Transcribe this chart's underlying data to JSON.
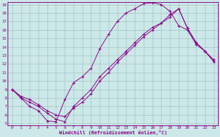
{
  "xlabel": "Windchill (Refroidissement éolien,°C)",
  "bg_color": "#cce8e8",
  "line_color": "#880088",
  "grid_color": "#99bbbb",
  "xlim": [
    0,
    23
  ],
  "ylim": [
    5,
    19
  ],
  "xticks": [
    0,
    1,
    2,
    3,
    4,
    5,
    6,
    7,
    8,
    9,
    10,
    11,
    12,
    13,
    14,
    15,
    16,
    17,
    18,
    19,
    20,
    21,
    22,
    23
  ],
  "yticks": [
    5,
    6,
    7,
    8,
    9,
    10,
    11,
    12,
    13,
    14,
    15,
    16,
    17,
    18,
    19
  ],
  "line1_x": [
    0,
    1,
    2,
    3,
    4,
    5,
    6,
    7,
    8,
    9,
    10,
    11,
    12,
    13,
    14,
    15,
    16,
    17,
    18,
    19,
    20,
    21,
    22,
    23
  ],
  "line1_y": [
    9.0,
    8.0,
    7.0,
    6.5,
    5.3,
    5.2,
    7.8,
    9.8,
    10.5,
    11.5,
    13.8,
    15.5,
    17.0,
    18.0,
    18.5,
    19.1,
    19.2,
    19.0,
    18.2,
    16.5,
    16.0,
    14.3,
    13.5,
    12.5
  ],
  "line2_x": [
    0,
    1,
    2,
    3,
    4,
    5,
    6,
    7,
    8,
    9,
    10,
    11,
    12,
    13,
    14,
    15,
    16,
    17,
    18,
    19,
    20,
    21,
    22,
    23
  ],
  "line2_y": [
    9.0,
    8.0,
    7.5,
    7.0,
    6.2,
    5.5,
    5.2,
    7.0,
    8.0,
    9.0,
    10.5,
    11.5,
    12.5,
    13.5,
    14.5,
    15.5,
    16.3,
    16.8,
    17.5,
    18.5,
    16.2,
    14.5,
    13.5,
    12.3
  ],
  "line3_x": [
    0,
    1,
    2,
    3,
    4,
    5,
    6,
    7,
    8,
    9,
    10,
    11,
    12,
    13,
    14,
    15,
    16,
    17,
    18,
    19,
    20,
    21,
    22,
    23
  ],
  "line3_y": [
    9.0,
    8.2,
    7.8,
    7.2,
    6.5,
    6.0,
    5.8,
    6.8,
    7.5,
    8.5,
    10.0,
    11.0,
    12.2,
    13.2,
    14.2,
    15.2,
    16.0,
    16.8,
    17.8,
    18.5,
    16.2,
    14.5,
    13.5,
    12.3
  ]
}
